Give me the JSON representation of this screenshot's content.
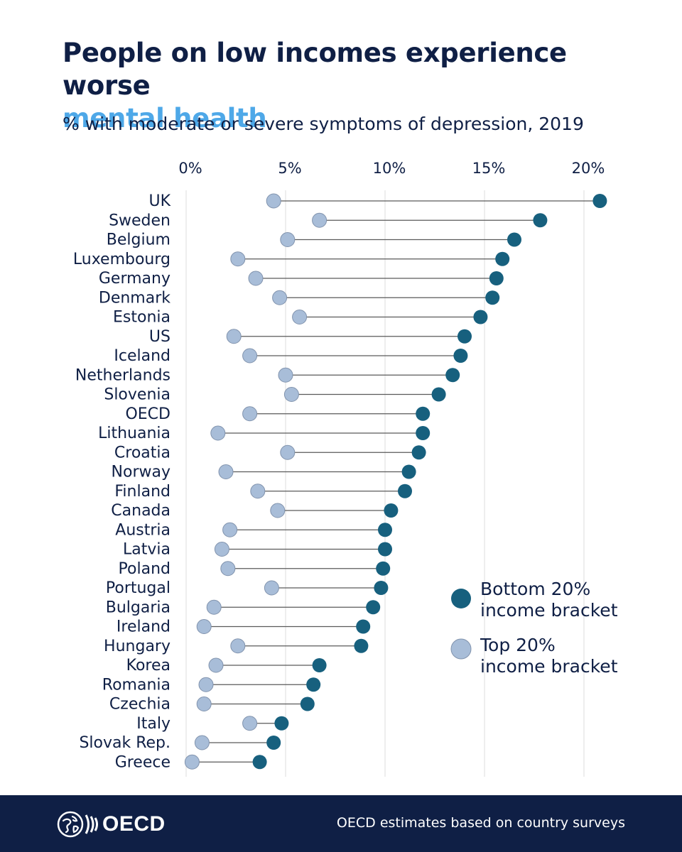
{
  "header": {
    "title_line1": "People on low incomes experience worse",
    "title_line2": "mental health",
    "subtitle": "% with moderate or severe symptoms of depression, 2019"
  },
  "chart_data": {
    "type": "dumbbell",
    "title": "People on low incomes experience worse mental health",
    "subtitle": "% with moderate or severe symptoms of depression, 2019",
    "xlabel": "",
    "ylabel": "",
    "xlim": [
      0,
      22
    ],
    "x_ticks": [
      0,
      5,
      10,
      15,
      20
    ],
    "x_tick_labels": [
      "0%",
      "5%",
      "10%",
      "15%",
      "20%"
    ],
    "grid": true,
    "legend_position": "right",
    "categories": [
      "UK",
      "Sweden",
      "Belgium",
      "Luxembourg",
      "Germany",
      "Denmark",
      "Estonia",
      "US",
      "Iceland",
      "Netherlands",
      "Slovenia",
      "OECD",
      "Lithuania",
      "Croatia",
      "Norway",
      "Finland",
      "Canada",
      "Austria",
      "Latvia",
      "Poland",
      "Portugal",
      "Bulgaria",
      "Ireland",
      "Hungary",
      "Korea",
      "Romania",
      "Czechia",
      "Italy",
      "Slovak Rep.",
      "Greece"
    ],
    "series": [
      {
        "name": "Bottom 20% income bracket",
        "color": "#17607e",
        "values": [
          20.8,
          17.8,
          16.5,
          15.9,
          15.6,
          15.4,
          14.8,
          14.0,
          13.8,
          13.4,
          12.7,
          11.9,
          11.9,
          11.7,
          11.2,
          11.0,
          10.3,
          10.0,
          10.0,
          9.9,
          9.8,
          9.4,
          8.9,
          8.8,
          6.7,
          6.4,
          6.1,
          4.8,
          4.4,
          3.7
        ]
      },
      {
        "name": "Top 20% income bracket",
        "color": "#a8bdd8",
        "values": [
          4.4,
          6.7,
          5.1,
          2.6,
          3.5,
          4.7,
          5.7,
          2.4,
          3.2,
          5.0,
          5.3,
          3.2,
          1.6,
          5.1,
          2.0,
          3.6,
          4.6,
          2.2,
          1.8,
          2.1,
          4.3,
          1.4,
          0.9,
          2.6,
          1.5,
          1.0,
          0.9,
          3.2,
          0.8,
          0.3
        ]
      }
    ]
  },
  "legend": {
    "bottom_line1": "Bottom 20%",
    "bottom_line2": "income bracket",
    "top_line1": "Top 20%",
    "top_line2": "income bracket"
  },
  "footer": {
    "logo_text": "OECD",
    "source": "OECD estimates based on country surveys"
  },
  "colors": {
    "navy": "#0f1f45",
    "title_accent": "#4ea8e8",
    "bottom_dot": "#17607e",
    "top_dot": "#a8bdd8"
  }
}
